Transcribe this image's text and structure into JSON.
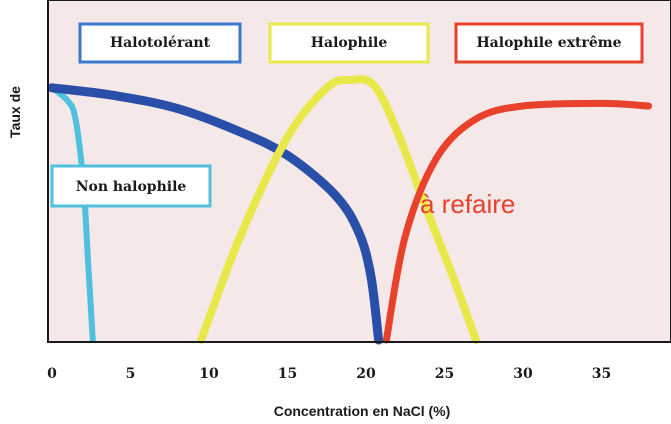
{
  "chart_data": {
    "type": "line",
    "title": "",
    "xlabel": "Concentration en NaCl (%)",
    "ylabel": "Taux de",
    "xlim": [
      0,
      38
    ],
    "ylim": [
      0,
      1
    ],
    "x_ticks": [
      "0",
      "5",
      "10",
      "15",
      "20",
      "25",
      "30",
      "35"
    ],
    "x_tick_values": [
      0,
      5,
      10,
      15,
      20,
      25,
      30,
      35
    ],
    "grid": false,
    "series": [
      {
        "name": "Non halophile",
        "color": "#4fc0dd",
        "points": [
          [
            0,
            0.97
          ],
          [
            1,
            0.92
          ],
          [
            1.5,
            0.85
          ],
          [
            2,
            0.6
          ],
          [
            2.3,
            0.3
          ],
          [
            2.6,
            0.0
          ]
        ]
      },
      {
        "name": "Halotolérant",
        "color": "#2a4fa8",
        "points": [
          [
            0,
            0.97
          ],
          [
            4,
            0.94
          ],
          [
            8,
            0.89
          ],
          [
            12,
            0.8
          ],
          [
            15,
            0.71
          ],
          [
            18,
            0.56
          ],
          [
            19.5,
            0.42
          ],
          [
            20.3,
            0.25
          ],
          [
            20.8,
            0.0
          ]
        ]
      },
      {
        "name": "Halophile",
        "color": "#e8e84a",
        "points": [
          [
            9.5,
            0.0
          ],
          [
            12,
            0.4
          ],
          [
            15,
            0.78
          ],
          [
            17.5,
            0.97
          ],
          [
            19,
            1.0
          ],
          [
            20.5,
            0.98
          ],
          [
            22,
            0.8
          ],
          [
            24,
            0.48
          ],
          [
            25.5,
            0.25
          ],
          [
            27,
            0.0
          ]
        ]
      },
      {
        "name": "Halophile extrême",
        "color": "#e8412c",
        "points": [
          [
            21.3,
            0.0
          ],
          [
            22.5,
            0.4
          ],
          [
            24.5,
            0.7
          ],
          [
            27,
            0.85
          ],
          [
            30,
            0.9
          ],
          [
            35,
            0.91
          ],
          [
            38,
            0.9
          ]
        ]
      }
    ]
  },
  "annotation": {
    "text": "à refaire",
    "color": "#e8412c"
  }
}
